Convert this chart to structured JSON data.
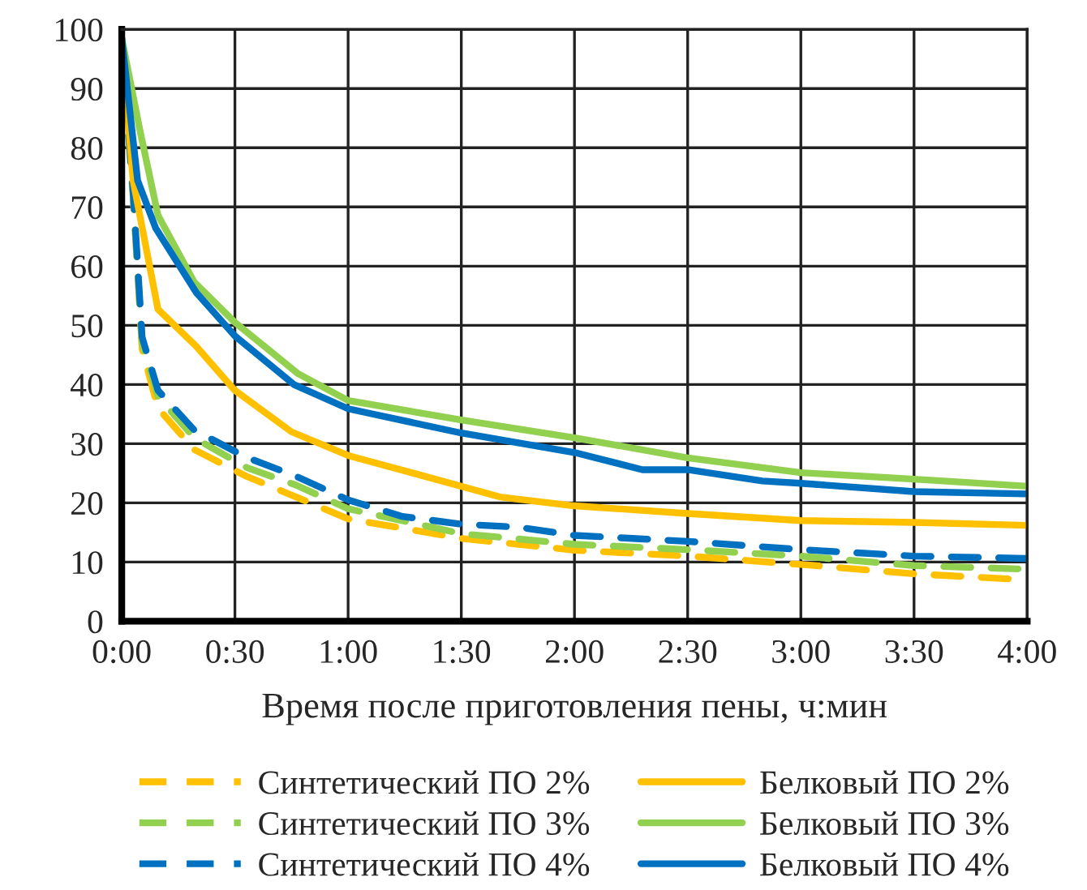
{
  "chart_data": {
    "type": "line",
    "xlabel": "Время после приготовления пены, ч:мин",
    "xlim": [
      0,
      4
    ],
    "xticks": [
      {
        "value": 0,
        "label": "0:00"
      },
      {
        "value": 0.5,
        "label": "0:30"
      },
      {
        "value": 1,
        "label": "1:00"
      },
      {
        "value": 1.5,
        "label": "1:30"
      },
      {
        "value": 2,
        "label": "2:00"
      },
      {
        "value": 2.5,
        "label": "2:30"
      },
      {
        "value": 3,
        "label": "3:00"
      },
      {
        "value": 3.5,
        "label": "3:30"
      },
      {
        "value": 4,
        "label": "4:00"
      }
    ],
    "ylim": [
      0,
      100
    ],
    "yticks": [
      0,
      10,
      20,
      30,
      40,
      50,
      60,
      70,
      80,
      90,
      100
    ],
    "grid": true,
    "legend": "bottom",
    "marker": "none",
    "series": [
      {
        "name": "Синтетический ПО 2%",
        "color": "#ffc000",
        "line_style": "dashed",
        "x": [
          0,
          0.05,
          0.09,
          0.16,
          0.32,
          0.55,
          0.77,
          1,
          1.5,
          2,
          2.5,
          3,
          3.5,
          4
        ],
        "values": [
          98,
          72,
          46,
          36,
          29,
          24.5,
          21,
          17.3,
          14,
          12,
          11,
          9.6,
          8,
          7
        ]
      },
      {
        "name": "Синтетический ПО 3%",
        "color": "#92d050",
        "line_style": "dashed",
        "x": [
          0,
          0.05,
          0.09,
          0.16,
          0.32,
          0.55,
          0.77,
          1,
          1.5,
          2,
          2.5,
          3,
          3.5,
          4
        ],
        "values": [
          98,
          72,
          47,
          38,
          31,
          26,
          23,
          19,
          14.8,
          13,
          12.1,
          11,
          9.4,
          8.8
        ]
      },
      {
        "name": "Синтетический ПО 4%",
        "color": "#0070c0",
        "line_style": "dashed",
        "x": [
          0,
          0.05,
          0.09,
          0.16,
          0.32,
          0.55,
          0.77,
          1,
          1.24,
          1.5,
          1.75,
          2,
          2.5,
          3,
          3.5,
          4
        ],
        "values": [
          98,
          72.7,
          48,
          39,
          32.3,
          27.7,
          24.5,
          20.5,
          17.7,
          16.4,
          15.9,
          14.5,
          13.5,
          12.1,
          11,
          10.6
        ]
      },
      {
        "name": "Белковый ПО 2%",
        "color": "#ffc000",
        "line_style": "solid",
        "x": [
          0,
          0.05,
          0.16,
          0.33,
          0.5,
          0.75,
          1,
          1.29,
          1.67,
          2,
          2.5,
          3,
          3.5,
          4
        ],
        "values": [
          98,
          74.5,
          52.7,
          46.4,
          39,
          32,
          28,
          25,
          21,
          19.5,
          18.2,
          17,
          16.7,
          16.2
        ]
      },
      {
        "name": "Белковый ПО 3%",
        "color": "#92d050",
        "line_style": "solid",
        "x": [
          0,
          0.08,
          0.16,
          0.32,
          0.5,
          0.78,
          1,
          1.5,
          2,
          2.5,
          3,
          3.5,
          4
        ],
        "values": [
          98.5,
          83,
          68.6,
          57.3,
          50.5,
          41.8,
          37.3,
          34,
          31,
          27.6,
          25.1,
          24,
          22.8
        ]
      },
      {
        "name": "Белковый ПО 4%",
        "color": "#0070c0",
        "line_style": "solid",
        "x": [
          0,
          0.07,
          0.15,
          0.33,
          0.5,
          0.76,
          1,
          1.5,
          2,
          2.3,
          2.5,
          2.83,
          3,
          3.5,
          4
        ],
        "values": [
          98.5,
          74.5,
          66.4,
          55.5,
          48.2,
          40,
          35.9,
          31.8,
          28.5,
          25.6,
          25.6,
          23.7,
          23.3,
          21.9,
          21.5
        ]
      }
    ]
  }
}
